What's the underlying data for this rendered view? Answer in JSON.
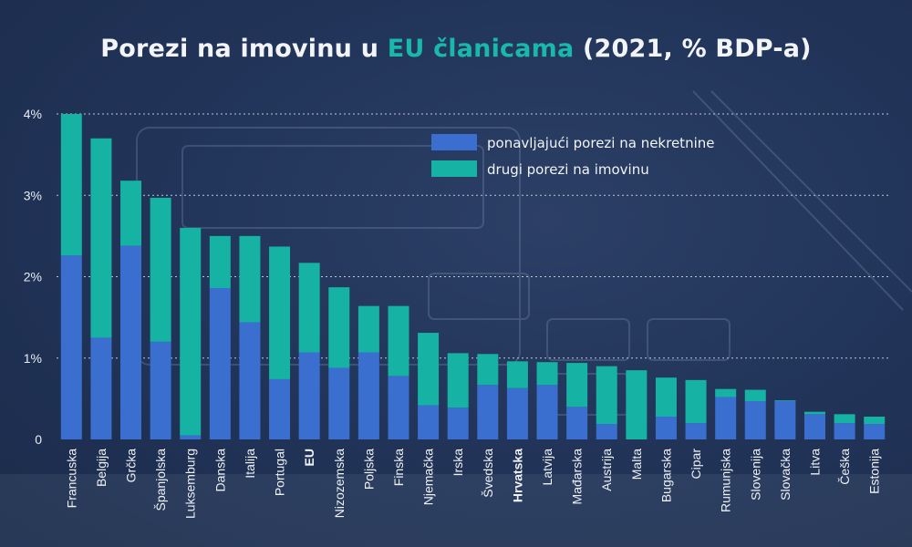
{
  "header": {
    "title_part1": "Porezi na imovinu u ",
    "title_highlight": "EU članicama",
    "title_part2": " (2021, % BDP-a)"
  },
  "colors": {
    "recurring": "#3a6fd0",
    "other": "#16b2a4",
    "highlight": "#19b8aa",
    "grid": "#d9dfe8"
  },
  "chart_data": {
    "type": "bar",
    "stacked": true,
    "title": "Porezi na imovinu u EU članicama (2021, % BDP-a)",
    "ylim": [
      0,
      4
    ],
    "yticks": [
      0,
      1,
      2,
      3,
      4
    ],
    "ytick_labels": [
      "0",
      "1%",
      "2%",
      "3%",
      "4%"
    ],
    "grid": true,
    "legend_position": "top-right",
    "categories": [
      "Francuska",
      "Belgija",
      "Grčka",
      "Španjolska",
      "Luksemburg",
      "Danska",
      "Italija",
      "Portugal",
      "EU",
      "Nizozemska",
      "Poljska",
      "Finska",
      "Njemačka",
      "Irska",
      "Švedska",
      "Hrvatska",
      "Latvija",
      "Mađarska",
      "Austrija",
      "Malta",
      "Bugarska",
      "Cipar",
      "Rumunjska",
      "Slovenija",
      "Slovačka",
      "Litva",
      "Češka",
      "Estonija"
    ],
    "bold_categories": [
      "EU",
      "Hrvatska"
    ],
    "series": [
      {
        "name": "ponavljajući porezi na nekretnine",
        "values": [
          2.26,
          1.25,
          2.38,
          1.2,
          0.05,
          1.86,
          1.44,
          0.74,
          1.07,
          0.88,
          1.07,
          0.78,
          0.42,
          0.39,
          0.67,
          0.63,
          0.67,
          0.4,
          0.19,
          0.0,
          0.28,
          0.2,
          0.52,
          0.47,
          0.47,
          0.31,
          0.2,
          0.19
        ]
      },
      {
        "name": "drugi porezi na imovinu",
        "values": [
          1.74,
          2.45,
          0.8,
          1.77,
          2.55,
          0.64,
          1.06,
          1.63,
          1.1,
          0.99,
          0.57,
          0.86,
          0.89,
          0.67,
          0.38,
          0.33,
          0.28,
          0.54,
          0.71,
          0.85,
          0.48,
          0.53,
          0.1,
          0.14,
          0.01,
          0.03,
          0.11,
          0.09
        ]
      }
    ]
  }
}
